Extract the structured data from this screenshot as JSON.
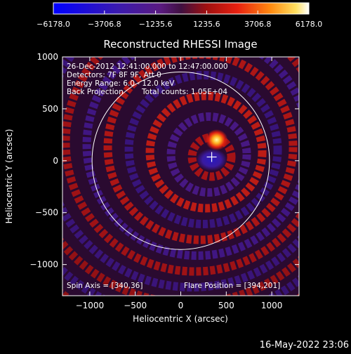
{
  "chart_data": {
    "type": "heatmap",
    "title": "Reconstructed RHESSI Image",
    "xlabel": "Heliocentric X (arcsec)",
    "ylabel": "Heliocentric Y (arcsec)",
    "xlim": [
      -1300,
      1300
    ],
    "ylim": [
      -1300,
      1000
    ],
    "xticks": [
      -1000,
      -500,
      0,
      500,
      1000
    ],
    "xtick_labels": [
      "−1000",
      "−500",
      "0",
      "500",
      "1000"
    ],
    "yticks": [
      -1000,
      -500,
      0,
      500,
      1000
    ],
    "ytick_labels": [
      "−1000",
      "−500",
      "0",
      "500",
      "1000"
    ],
    "colorbar": {
      "min": -6178.0,
      "max": 6178.0,
      "ticks": [
        -6178.0,
        -3706.8,
        -1235.6,
        1235.6,
        3706.8,
        6178.0
      ],
      "tick_labels": [
        "−6178.0",
        "−3706.8",
        "−1235.6",
        "1235.6",
        "3706.8",
        "6178.0"
      ]
    },
    "annotations": {
      "line1": "26-Dec-2012 12:41:00.000 to 12:47:00.000",
      "line2": "Detectors: 7F 8F 9F, Att 0",
      "line3": "Energy Range: 6.0 - 12.0 keV",
      "line4_left": "Back Projection",
      "line4_right": "Total counts: 1.05E+04",
      "spin_axis": "Spin Axis = [340,36]",
      "flare_position": "Flare Position = [394,201]"
    },
    "spin_axis": [
      340,
      36
    ],
    "flare_position": [
      394,
      201
    ],
    "solar_limb_radius": 975,
    "timestamp": "16-May-2022 23:06"
  }
}
